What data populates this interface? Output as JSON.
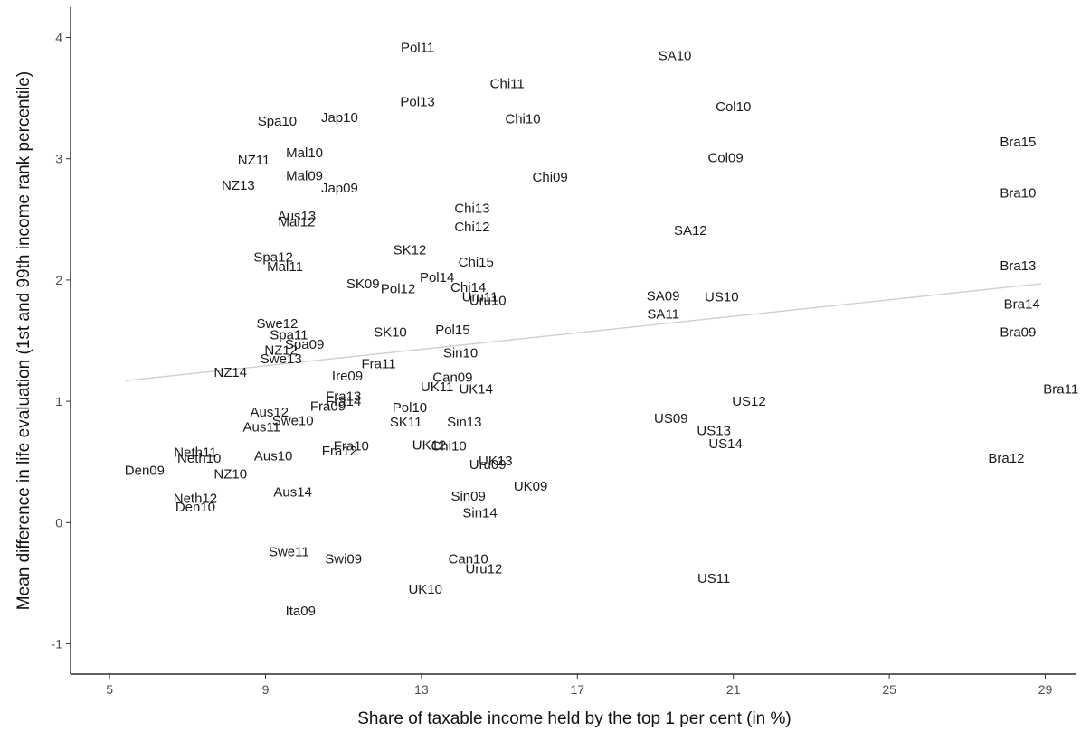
{
  "chart_data": {
    "type": "scatter",
    "title": "",
    "xlabel": "Share of taxable income held by the top 1 per cent (in %)",
    "ylabel": "Mean difference in life evaluation (1st and 99th income rank percentile)",
    "xlim": [
      4.0,
      29.8
    ],
    "ylim": [
      -1.25,
      4.25
    ],
    "x_ticks": [
      5,
      9,
      13,
      17,
      21,
      25,
      29
    ],
    "y_ticks": [
      -1,
      0,
      1,
      2,
      3,
      4
    ],
    "grid": false,
    "trend_line": {
      "x": [
        5.4,
        28.9
      ],
      "y": [
        1.17,
        1.97
      ],
      "color": "#cfcfcf"
    },
    "points": [
      {
        "label": "Pol11",
        "x": 12.9,
        "y": 3.92
      },
      {
        "label": "SA10",
        "x": 19.5,
        "y": 3.85
      },
      {
        "label": "Chi11",
        "x": 15.2,
        "y": 3.62
      },
      {
        "label": "Pol13",
        "x": 12.9,
        "y": 3.47
      },
      {
        "label": "Col10",
        "x": 21.0,
        "y": 3.43
      },
      {
        "label": "Jap10",
        "x": 10.9,
        "y": 3.34
      },
      {
        "label": "Chi10",
        "x": 15.6,
        "y": 3.33
      },
      {
        "label": "Spa10",
        "x": 9.3,
        "y": 3.31
      },
      {
        "label": "Bra15",
        "x": 28.3,
        "y": 3.14
      },
      {
        "label": "Mal10",
        "x": 10.0,
        "y": 3.05
      },
      {
        "label": "Col09",
        "x": 20.8,
        "y": 3.01
      },
      {
        "label": "NZ11",
        "x": 8.7,
        "y": 2.99
      },
      {
        "label": "Mal09",
        "x": 10.0,
        "y": 2.86
      },
      {
        "label": "Chi09",
        "x": 16.3,
        "y": 2.85
      },
      {
        "label": "NZ13",
        "x": 8.3,
        "y": 2.78
      },
      {
        "label": "Jap09",
        "x": 10.9,
        "y": 2.76
      },
      {
        "label": "Bra10",
        "x": 28.3,
        "y": 2.72
      },
      {
        "label": "Chi13",
        "x": 14.3,
        "y": 2.59
      },
      {
        "label": "Aus13",
        "x": 9.8,
        "y": 2.53
      },
      {
        "label": "Mal12",
        "x": 9.8,
        "y": 2.48
      },
      {
        "label": "Chi12",
        "x": 14.3,
        "y": 2.44
      },
      {
        "label": "SA12",
        "x": 19.9,
        "y": 2.41
      },
      {
        "label": "SK12",
        "x": 12.7,
        "y": 2.25
      },
      {
        "label": "Spa12",
        "x": 9.2,
        "y": 2.19
      },
      {
        "label": "Chi15",
        "x": 14.4,
        "y": 2.15
      },
      {
        "label": "Bra13",
        "x": 28.3,
        "y": 2.12
      },
      {
        "label": "Mal11",
        "x": 9.5,
        "y": 2.11
      },
      {
        "label": "Pol14",
        "x": 13.4,
        "y": 2.02
      },
      {
        "label": "SK09",
        "x": 11.5,
        "y": 1.97
      },
      {
        "label": "Chi14",
        "x": 14.2,
        "y": 1.94
      },
      {
        "label": "Pol12",
        "x": 12.4,
        "y": 1.93
      },
      {
        "label": "Uru11",
        "x": 14.5,
        "y": 1.86
      },
      {
        "label": "SA09",
        "x": 19.2,
        "y": 1.87
      },
      {
        "label": "US10",
        "x": 20.7,
        "y": 1.86
      },
      {
        "label": "Uru10",
        "x": 14.7,
        "y": 1.83
      },
      {
        "label": "Bra14",
        "x": 28.4,
        "y": 1.8
      },
      {
        "label": "SA11",
        "x": 19.2,
        "y": 1.72
      },
      {
        "label": "Swe12",
        "x": 9.3,
        "y": 1.64
      },
      {
        "label": "Bra09",
        "x": 28.3,
        "y": 1.57
      },
      {
        "label": "Pol15",
        "x": 13.8,
        "y": 1.59
      },
      {
        "label": "SK10",
        "x": 12.2,
        "y": 1.57
      },
      {
        "label": "Spa11",
        "x": 9.6,
        "y": 1.55
      },
      {
        "label": "Spa09",
        "x": 10.0,
        "y": 1.47
      },
      {
        "label": "NZ12",
        "x": 9.4,
        "y": 1.42
      },
      {
        "label": "Sin10",
        "x": 14.0,
        "y": 1.4
      },
      {
        "label": "Swe13",
        "x": 9.4,
        "y": 1.35
      },
      {
        "label": "Fra11",
        "x": 11.9,
        "y": 1.31
      },
      {
        "label": "NZ14",
        "x": 8.1,
        "y": 1.24
      },
      {
        "label": "Ire09",
        "x": 11.1,
        "y": 1.21
      },
      {
        "label": "Can09",
        "x": 13.8,
        "y": 1.2
      },
      {
        "label": "UK11",
        "x": 13.4,
        "y": 1.12
      },
      {
        "label": "UK14",
        "x": 14.4,
        "y": 1.1
      },
      {
        "label": "Bra11",
        "x": 29.4,
        "y": 1.1
      },
      {
        "label": "Fra13",
        "x": 11.0,
        "y": 1.04
      },
      {
        "label": "Fra14",
        "x": 11.0,
        "y": 1.0
      },
      {
        "label": "US12",
        "x": 21.4,
        "y": 1.0
      },
      {
        "label": "Fra09",
        "x": 10.6,
        "y": 0.96
      },
      {
        "label": "Pol10",
        "x": 12.7,
        "y": 0.95
      },
      {
        "label": "Aus12",
        "x": 9.1,
        "y": 0.91
      },
      {
        "label": "US09",
        "x": 19.4,
        "y": 0.86
      },
      {
        "label": "Swe10",
        "x": 9.7,
        "y": 0.84
      },
      {
        "label": "SK11",
        "x": 12.6,
        "y": 0.83
      },
      {
        "label": "Sin13",
        "x": 14.1,
        "y": 0.83
      },
      {
        "label": "Aus11",
        "x": 8.9,
        "y": 0.79
      },
      {
        "label": "US13",
        "x": 20.5,
        "y": 0.76
      },
      {
        "label": "US14",
        "x": 20.8,
        "y": 0.65
      },
      {
        "label": "Fra10",
        "x": 11.2,
        "y": 0.63
      },
      {
        "label": "UK12",
        "x": 13.2,
        "y": 0.64
      },
      {
        "label": "Chi10",
        "x": 13.7,
        "y": 0.63
      },
      {
        "label": "Fra12",
        "x": 10.9,
        "y": 0.59
      },
      {
        "label": "Neth11",
        "x": 7.2,
        "y": 0.58
      },
      {
        "label": "Aus10",
        "x": 9.2,
        "y": 0.55
      },
      {
        "label": "Neth10",
        "x": 7.3,
        "y": 0.53
      },
      {
        "label": "UK13",
        "x": 14.9,
        "y": 0.51
      },
      {
        "label": "Bra12",
        "x": 28.0,
        "y": 0.53
      },
      {
        "label": "Uru09",
        "x": 14.7,
        "y": 0.48
      },
      {
        "label": "Den09",
        "x": 5.9,
        "y": 0.43
      },
      {
        "label": "NZ10",
        "x": 8.1,
        "y": 0.4
      },
      {
        "label": "UK09",
        "x": 15.8,
        "y": 0.3
      },
      {
        "label": "Aus14",
        "x": 9.7,
        "y": 0.25
      },
      {
        "label": "Sin09",
        "x": 14.2,
        "y": 0.22
      },
      {
        "label": "Neth12",
        "x": 7.2,
        "y": 0.2
      },
      {
        "label": "Den10",
        "x": 7.2,
        "y": 0.13
      },
      {
        "label": "Sin14",
        "x": 14.5,
        "y": 0.08
      },
      {
        "label": "Swe11",
        "x": 9.6,
        "y": -0.24
      },
      {
        "label": "Swi09",
        "x": 11.0,
        "y": -0.3
      },
      {
        "label": "Can10",
        "x": 14.2,
        "y": -0.3
      },
      {
        "label": "Uru12",
        "x": 14.6,
        "y": -0.38
      },
      {
        "label": "US11",
        "x": 20.5,
        "y": -0.46
      },
      {
        "label": "UK10",
        "x": 13.1,
        "y": -0.55
      },
      {
        "label": "Ita09",
        "x": 9.9,
        "y": -0.73
      }
    ]
  }
}
